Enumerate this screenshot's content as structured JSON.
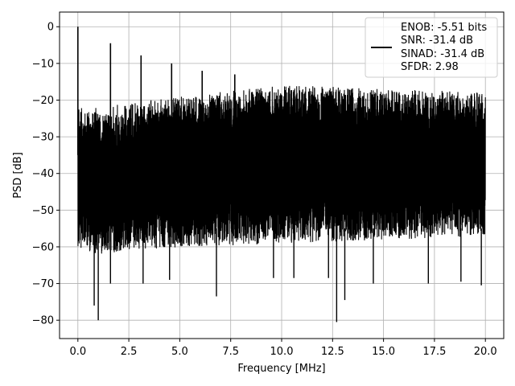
{
  "chart_data": {
    "type": "line",
    "title": "",
    "xlabel": "Frequency [MHz]",
    "ylabel": "PSD [dB]",
    "xlim": [
      -0.9,
      20.9
    ],
    "ylim": [
      -85,
      4
    ],
    "x_ticks": [
      0.0,
      2.5,
      5.0,
      7.5,
      10.0,
      12.5,
      15.0,
      17.5,
      20.0
    ],
    "x_tick_labels": [
      "0.0",
      "2.5",
      "5.0",
      "7.5",
      "10.0",
      "12.5",
      "15.0",
      "17.5",
      "20.0"
    ],
    "y_ticks": [
      0,
      -10,
      -20,
      -30,
      -40,
      -50,
      -60,
      -70,
      -80
    ],
    "y_tick_labels": [
      "0",
      "−10",
      "−20",
      "−30",
      "−40",
      "−50",
      "−60",
      "−70",
      "−80"
    ],
    "grid": true,
    "legend_placement": "top-right",
    "series_color": "#000000",
    "noise_band": {
      "x_range": [
        0.0,
        20.0
      ],
      "upper_envelope": {
        "x": [
          0.0,
          1.0,
          2.5,
          5.0,
          10.0,
          15.0,
          20.0
        ],
        "y": [
          -22,
          -22,
          -21,
          -19,
          -16,
          -17,
          -18
        ]
      },
      "lower_envelope": {
        "x": [
          0.0,
          1.0,
          2.5,
          5.0,
          10.0,
          15.0,
          20.0
        ],
        "y": [
          -60,
          -62,
          -61,
          -60,
          -59,
          -58,
          -57
        ]
      }
    },
    "peaks": [
      {
        "x": 0.0,
        "y": 0.0
      },
      {
        "x": 1.6,
        "y": -4.5
      },
      {
        "x": 3.1,
        "y": -7.8
      },
      {
        "x": 4.6,
        "y": -10.0
      },
      {
        "x": 6.1,
        "y": -12.0
      },
      {
        "x": 7.7,
        "y": -13.0
      }
    ],
    "dips": [
      {
        "x": 0.8,
        "y": -76.0
      },
      {
        "x": 1.0,
        "y": -80.0
      },
      {
        "x": 1.6,
        "y": -70.0
      },
      {
        "x": 3.2,
        "y": -70.0
      },
      {
        "x": 4.5,
        "y": -69.0
      },
      {
        "x": 6.8,
        "y": -73.5
      },
      {
        "x": 9.6,
        "y": -68.5
      },
      {
        "x": 10.6,
        "y": -68.5
      },
      {
        "x": 12.3,
        "y": -68.5
      },
      {
        "x": 12.7,
        "y": -80.5
      },
      {
        "x": 13.1,
        "y": -74.5
      },
      {
        "x": 14.5,
        "y": -70.0
      },
      {
        "x": 17.2,
        "y": -70.0
      },
      {
        "x": 18.8,
        "y": -69.5
      },
      {
        "x": 19.8,
        "y": -70.5
      }
    ],
    "legend": {
      "lines": [
        "ENOB: -5.51 bits",
        "SNR: -31.4 dB",
        "SINAD: -31.4 dB",
        "SFDR: 2.98"
      ]
    }
  }
}
